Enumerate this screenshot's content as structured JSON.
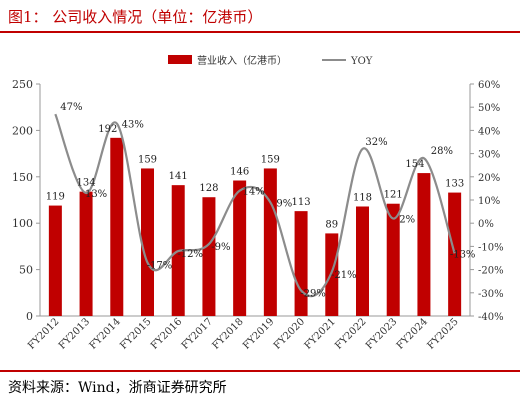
{
  "header": {
    "title": "图1：  公司收入情况（单位：亿港币）"
  },
  "footer": {
    "source": "资料来源：Wind，浙商证券研究所"
  },
  "colors": {
    "bar": "#c00000",
    "line": "#8c8c8c",
    "accent": "#c00000"
  },
  "chart_data": {
    "type": "bar",
    "categories": [
      "FY2012",
      "FY2013",
      "FY2014",
      "FY2015",
      "FY2016",
      "FY2017",
      "FY2018",
      "FY2019",
      "FY2020",
      "FY2021",
      "FY2022",
      "FY2023",
      "FY2024",
      "FY2025"
    ],
    "series": [
      {
        "name": "营业收入（亿港币）",
        "type": "bar",
        "axis": "left",
        "values": [
          119,
          134,
          192,
          159,
          141,
          128,
          146,
          159,
          113,
          89,
          118,
          121,
          154,
          133
        ],
        "labels": [
          "119",
          "134",
          "192",
          "159",
          "141",
          "128",
          "146",
          "159",
          "113",
          "89",
          "118",
          "121",
          "154",
          "133"
        ]
      },
      {
        "name": "YOY",
        "type": "line",
        "axis": "right",
        "values": [
          47,
          13,
          43,
          -17,
          -12,
          -9,
          14,
          9,
          -29,
          -21,
          32,
          2,
          28,
          -13
        ],
        "labels": [
          "47%",
          "13%",
          "43%",
          "-17%",
          "-12%",
          "-9%",
          "14%",
          "9%",
          "-29%",
          "-21%",
          "32%",
          "2%",
          "28%",
          "-13%"
        ]
      }
    ],
    "y_left": {
      "min": 0,
      "max": 250,
      "ticks": [
        "0",
        "50",
        "100",
        "150",
        "200",
        "250"
      ]
    },
    "y_right": {
      "min": -40,
      "max": 60,
      "ticks": [
        "-40%",
        "-30%",
        "-20%",
        "-10%",
        "0%",
        "10%",
        "20%",
        "30%",
        "40%",
        "50%",
        "60%"
      ]
    },
    "legend_position": "top-center",
    "grid": false
  }
}
